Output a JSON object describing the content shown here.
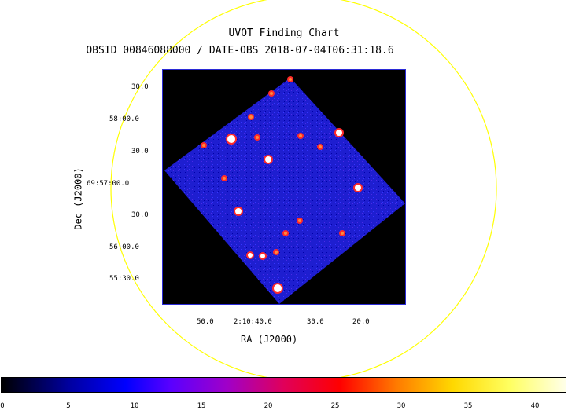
{
  "title": "UVOT Finding Chart",
  "subtitle": "OBSID 00846088000 / DATE-OBS 2018-07-04T06:31:18.6",
  "y_axis_label": "Dec (J2000)",
  "x_axis_label": "RA (J2000)",
  "y_ticks": [
    "30.0",
    "58:00.0",
    "30.0",
    "69:57:00.0",
    "30.0",
    "56:00.0",
    "55:30.0"
  ],
  "x_ticks": [
    "50.0",
    "2:10:40.0",
    "30.0",
    "20.0"
  ],
  "colorbar_ticks": [
    "0",
    "5",
    "10",
    "15",
    "20",
    "25",
    "30",
    "35",
    "40"
  ],
  "colors": {
    "circle": "#ffff00",
    "background": "#000000",
    "field": "#2020d0"
  }
}
